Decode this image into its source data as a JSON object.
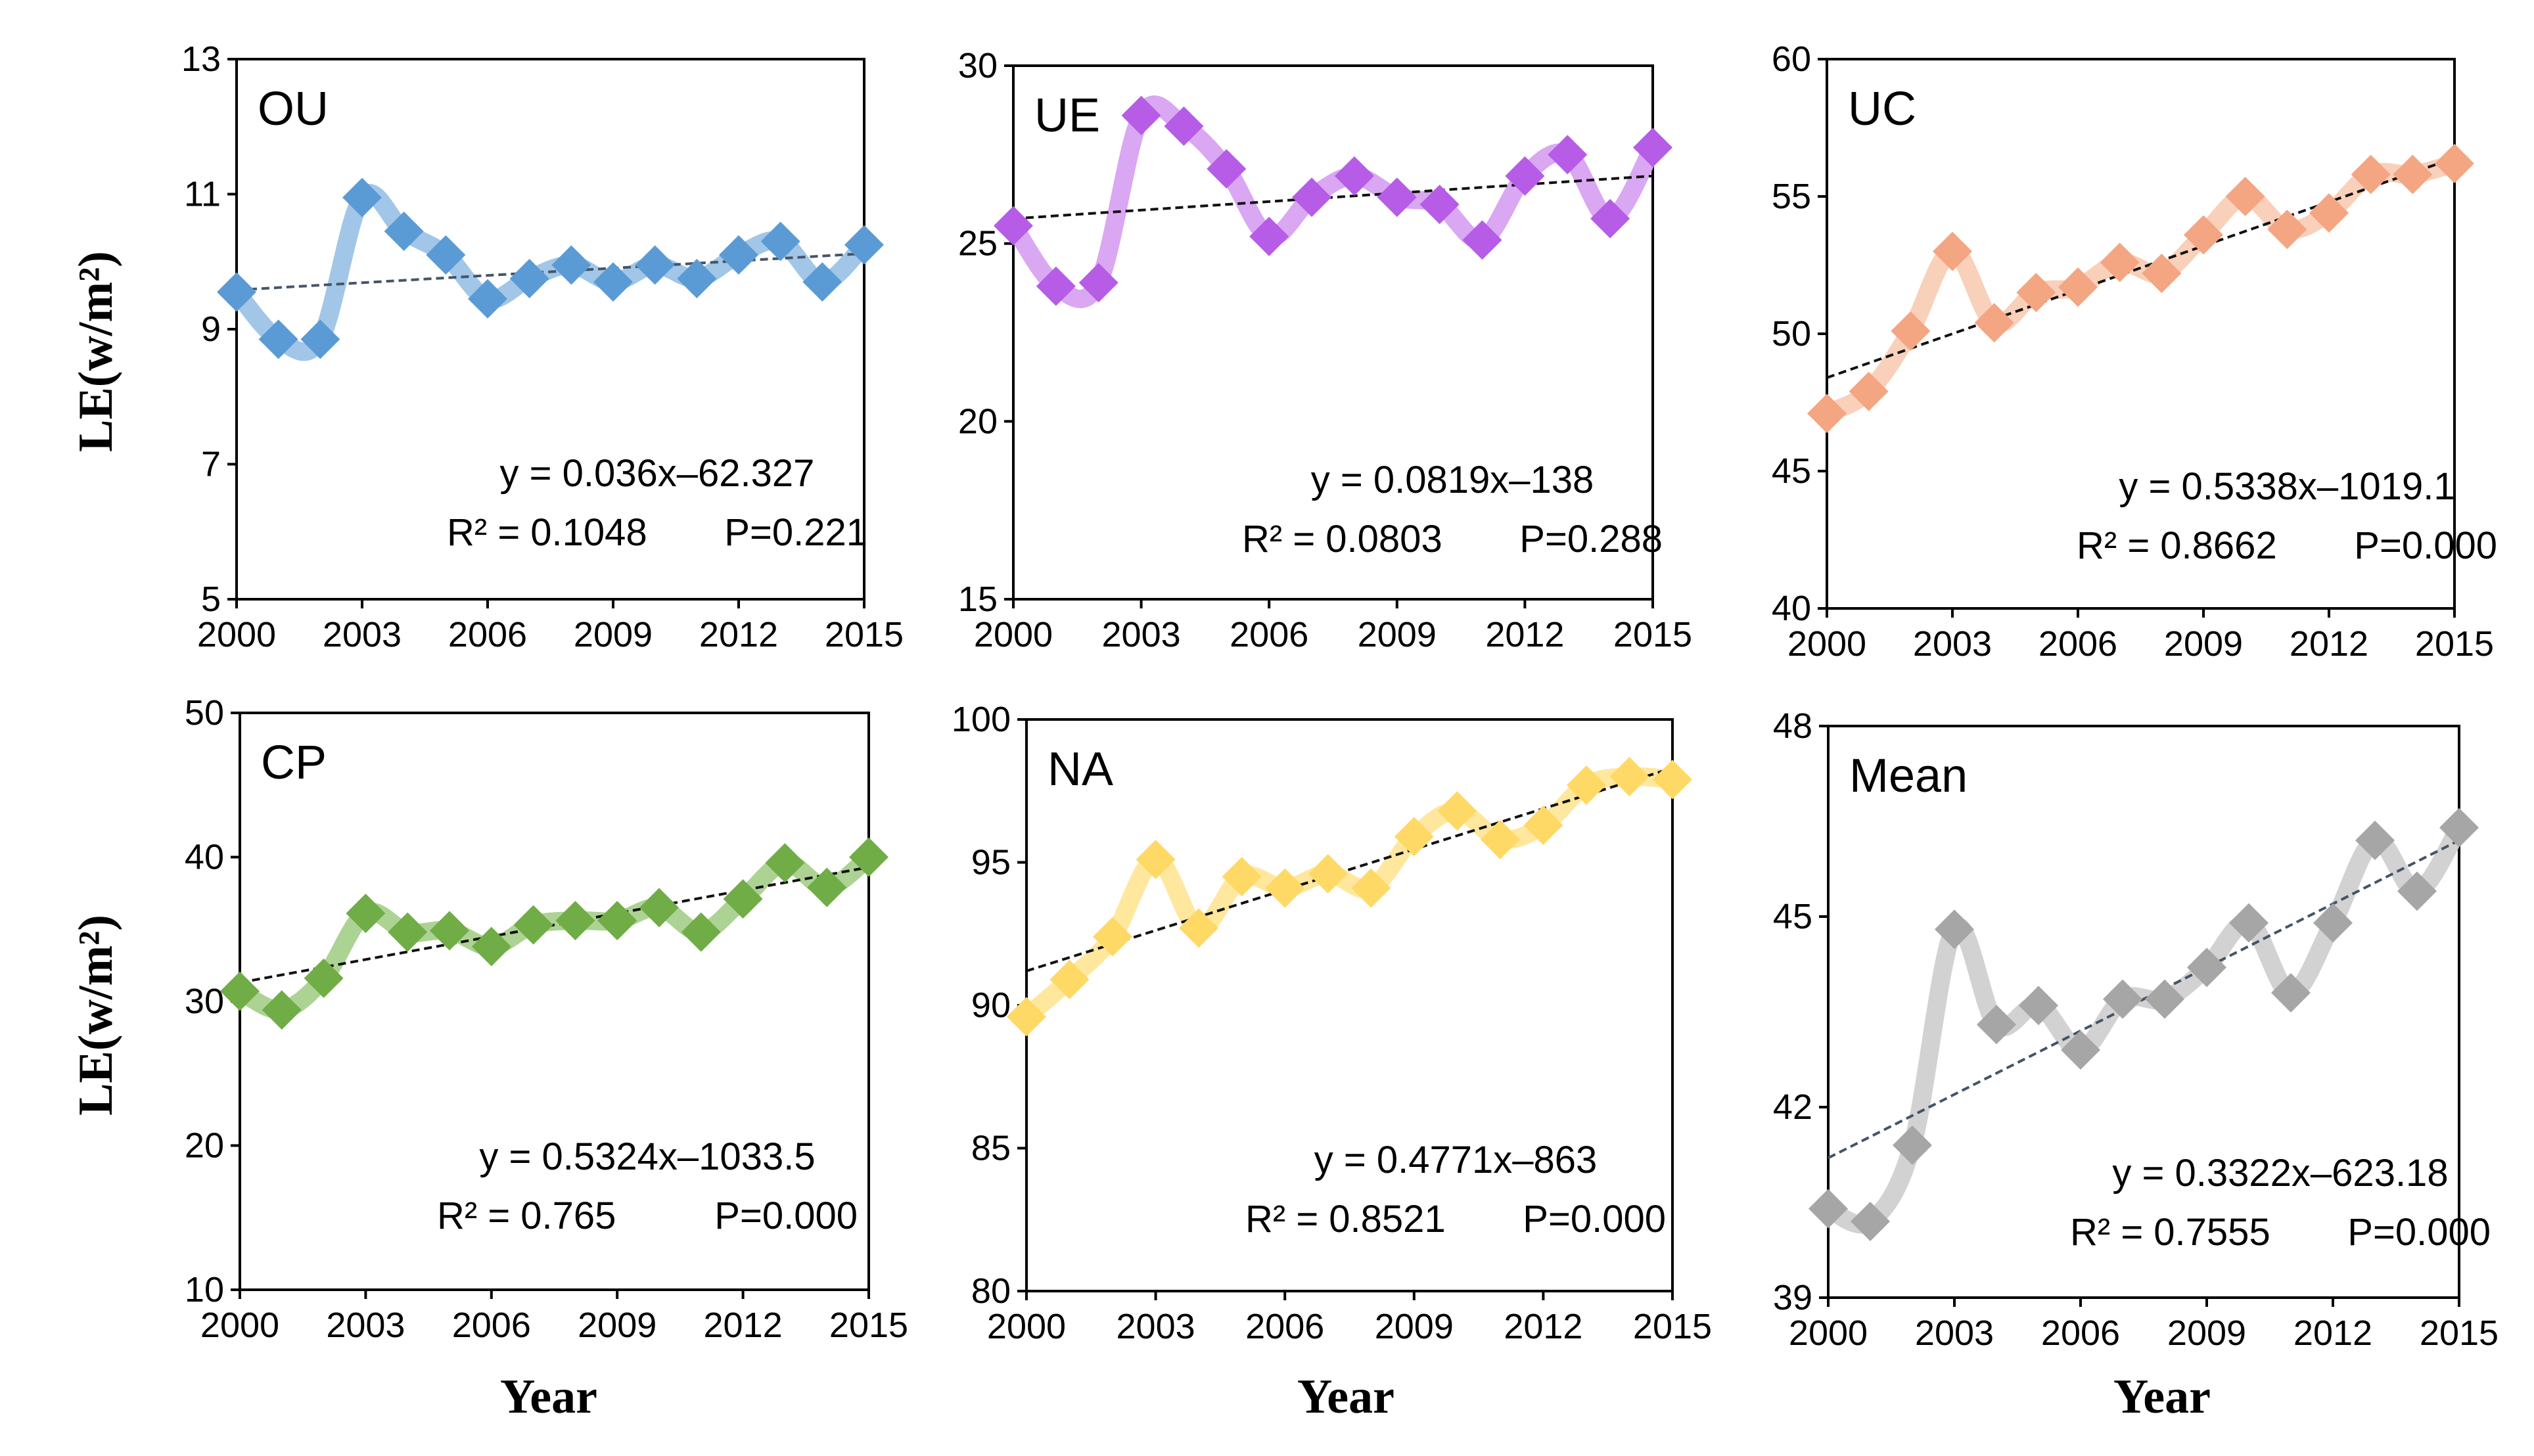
{
  "figure": {
    "x_axis_label": "Year",
    "y_axis_label": "LE(w/m²)"
  },
  "chart_data": [
    {
      "type": "line",
      "title": "OU",
      "x": [
        2000,
        2001,
        2002,
        2003,
        2004,
        2005,
        2006,
        2007,
        2008,
        2009,
        2010,
        2011,
        2012,
        2013,
        2014,
        2015
      ],
      "values": [
        9.55,
        8.85,
        8.85,
        10.95,
        10.45,
        10.1,
        9.45,
        9.75,
        9.95,
        9.7,
        9.95,
        9.75,
        10.1,
        10.3,
        9.7,
        10.25
      ],
      "ylim": [
        5,
        13
      ],
      "yticks": [
        "5",
        "7",
        "9",
        "11",
        "13"
      ],
      "xticks": [
        "2000",
        "2003",
        "2006",
        "2009",
        "2012",
        "2015"
      ],
      "color": "#5B9BD5",
      "light_color": "#9DC3E6",
      "trend": {
        "start": 9.58,
        "end": 10.12
      },
      "equation": "y = 0.036x–62.327",
      "r2": "R² = 0.1048",
      "p": "P=0.221"
    },
    {
      "type": "line",
      "title": "UE",
      "x": [
        2000,
        2001,
        2002,
        2003,
        2004,
        2005,
        2006,
        2007,
        2008,
        2009,
        2010,
        2011,
        2012,
        2013,
        2014,
        2015
      ],
      "values": [
        25.5,
        23.8,
        23.9,
        28.6,
        28.3,
        27.1,
        25.2,
        26.3,
        26.9,
        26.3,
        26.1,
        25.1,
        26.9,
        27.5,
        25.7,
        27.7
      ],
      "ylim": [
        15,
        30
      ],
      "yticks": [
        "15",
        "20",
        "25",
        "30"
      ],
      "xticks": [
        "2000",
        "2003",
        "2006",
        "2009",
        "2012",
        "2015"
      ],
      "color": "#B65CE6",
      "light_color": "#D8A2F2",
      "trend": {
        "start": 25.7,
        "end": 26.9
      },
      "equation": "y = 0.0819x–138",
      "r2": "R² = 0.0803",
      "p": "P=0.288"
    },
    {
      "type": "line",
      "title": "UC",
      "x": [
        2000,
        2001,
        2002,
        2003,
        2004,
        2005,
        2006,
        2007,
        2008,
        2009,
        2010,
        2011,
        2012,
        2013,
        2014,
        2015
      ],
      "values": [
        47.1,
        47.9,
        50.1,
        53.0,
        50.4,
        51.5,
        51.7,
        52.6,
        52.2,
        53.6,
        55.0,
        53.8,
        54.4,
        55.8,
        55.8,
        56.2
      ],
      "ylim": [
        40,
        60
      ],
      "yticks": [
        "40",
        "45",
        "50",
        "55",
        "60"
      ],
      "xticks": [
        "2000",
        "2003",
        "2006",
        "2009",
        "2012",
        "2015"
      ],
      "color": "#F4A582",
      "light_color": "#F9CDB6",
      "trend": {
        "start": 48.4,
        "end": 56.4
      },
      "equation": "y = 0.5338x–1019.1",
      "r2": "R² = 0.8662",
      "p": "P=0.000"
    },
    {
      "type": "line",
      "title": "CP",
      "x": [
        2000,
        2001,
        2002,
        2003,
        2004,
        2005,
        2006,
        2007,
        2008,
        2009,
        2010,
        2011,
        2012,
        2013,
        2014,
        2015
      ],
      "values": [
        30.7,
        29.4,
        31.6,
        36.1,
        34.8,
        34.9,
        33.8,
        35.3,
        35.6,
        35.6,
        36.5,
        34.8,
        37.1,
        39.6,
        37.9,
        40.0
      ],
      "ylim": [
        10,
        50
      ],
      "yticks": [
        "10",
        "20",
        "30",
        "40",
        "50"
      ],
      "xticks": [
        "2000",
        "2003",
        "2006",
        "2009",
        "2012",
        "2015"
      ],
      "color": "#70AD47",
      "light_color": "#A9D18E",
      "trend": {
        "start": 31.3,
        "end": 39.3
      },
      "equation": "y = 0.5324x–1033.5",
      "r2": "R² = 0.765",
      "p": "P=0.000"
    },
    {
      "type": "line",
      "title": "NA",
      "x": [
        2000,
        2001,
        2002,
        2003,
        2004,
        2005,
        2006,
        2007,
        2008,
        2009,
        2010,
        2011,
        2012,
        2013,
        2014,
        2015
      ],
      "values": [
        89.6,
        90.9,
        92.4,
        95.1,
        92.7,
        94.5,
        94.1,
        94.6,
        94.1,
        95.9,
        96.8,
        95.8,
        96.3,
        97.7,
        98.0,
        97.9
      ],
      "ylim": [
        80,
        100
      ],
      "yticks": [
        "80",
        "85",
        "90",
        "95",
        "100"
      ],
      "xticks": [
        "2000",
        "2003",
        "2006",
        "2009",
        "2012",
        "2015"
      ],
      "color": "#FFD966",
      "light_color": "#FFE699",
      "trend": {
        "start": 91.2,
        "end": 98.3
      },
      "equation": "y = 0.4771x–863",
      "r2": "R² = 0.8521",
      "p": "P=0.000"
    },
    {
      "type": "line",
      "title": "Mean",
      "x": [
        2000,
        2001,
        2002,
        2003,
        2004,
        2005,
        2006,
        2007,
        2008,
        2009,
        2010,
        2011,
        2012,
        2013,
        2014,
        2015
      ],
      "values": [
        40.4,
        40.2,
        41.4,
        44.8,
        43.3,
        43.6,
        42.9,
        43.7,
        43.7,
        44.2,
        44.9,
        43.8,
        44.9,
        46.2,
        45.4,
        46.4
      ],
      "ylim": [
        39,
        48
      ],
      "yticks": [
        "39",
        "42",
        "45",
        "48"
      ],
      "xticks": [
        "2000",
        "2003",
        "2006",
        "2009",
        "2012",
        "2015"
      ],
      "color": "#A6A6A6",
      "light_color": "#D0D0D0",
      "trend": {
        "start": 41.2,
        "end": 46.2
      },
      "equation": "y = 0.3322x–623.18",
      "r2": "R² = 0.7555",
      "p": "P=0.000"
    }
  ]
}
